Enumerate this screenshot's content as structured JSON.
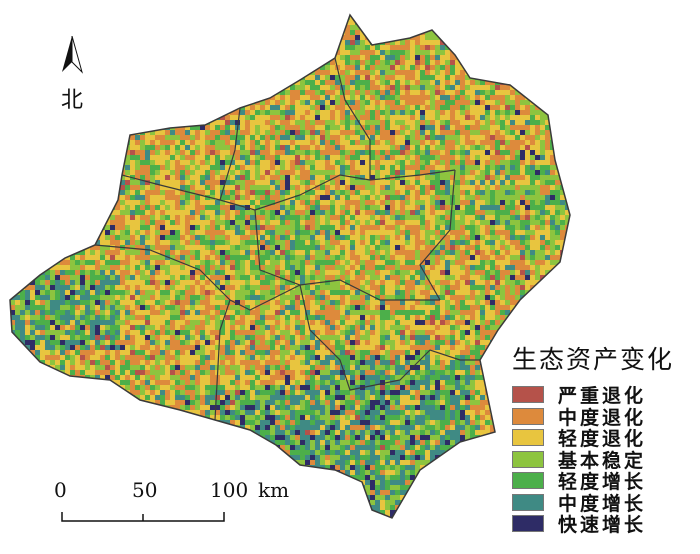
{
  "north_arrow": {
    "label": "北"
  },
  "legend": {
    "title": "生态资产变化",
    "items": [
      {
        "label": "严重退化",
        "color": "#b5524a"
      },
      {
        "label": "中度退化",
        "color": "#dd8a3c"
      },
      {
        "label": "轻度退化",
        "color": "#e8c53f"
      },
      {
        "label": "基本稳定",
        "color": "#8dc43f"
      },
      {
        "label": "轻度增长",
        "color": "#4caf4a"
      },
      {
        "label": "中度增长",
        "color": "#3f8a84"
      },
      {
        "label": "快速增长",
        "color": "#2e2c66"
      }
    ]
  },
  "scale_bar": {
    "ticks": [
      "0",
      "50",
      "100"
    ],
    "unit": "km"
  },
  "boundary_color": "#3a3a3a"
}
